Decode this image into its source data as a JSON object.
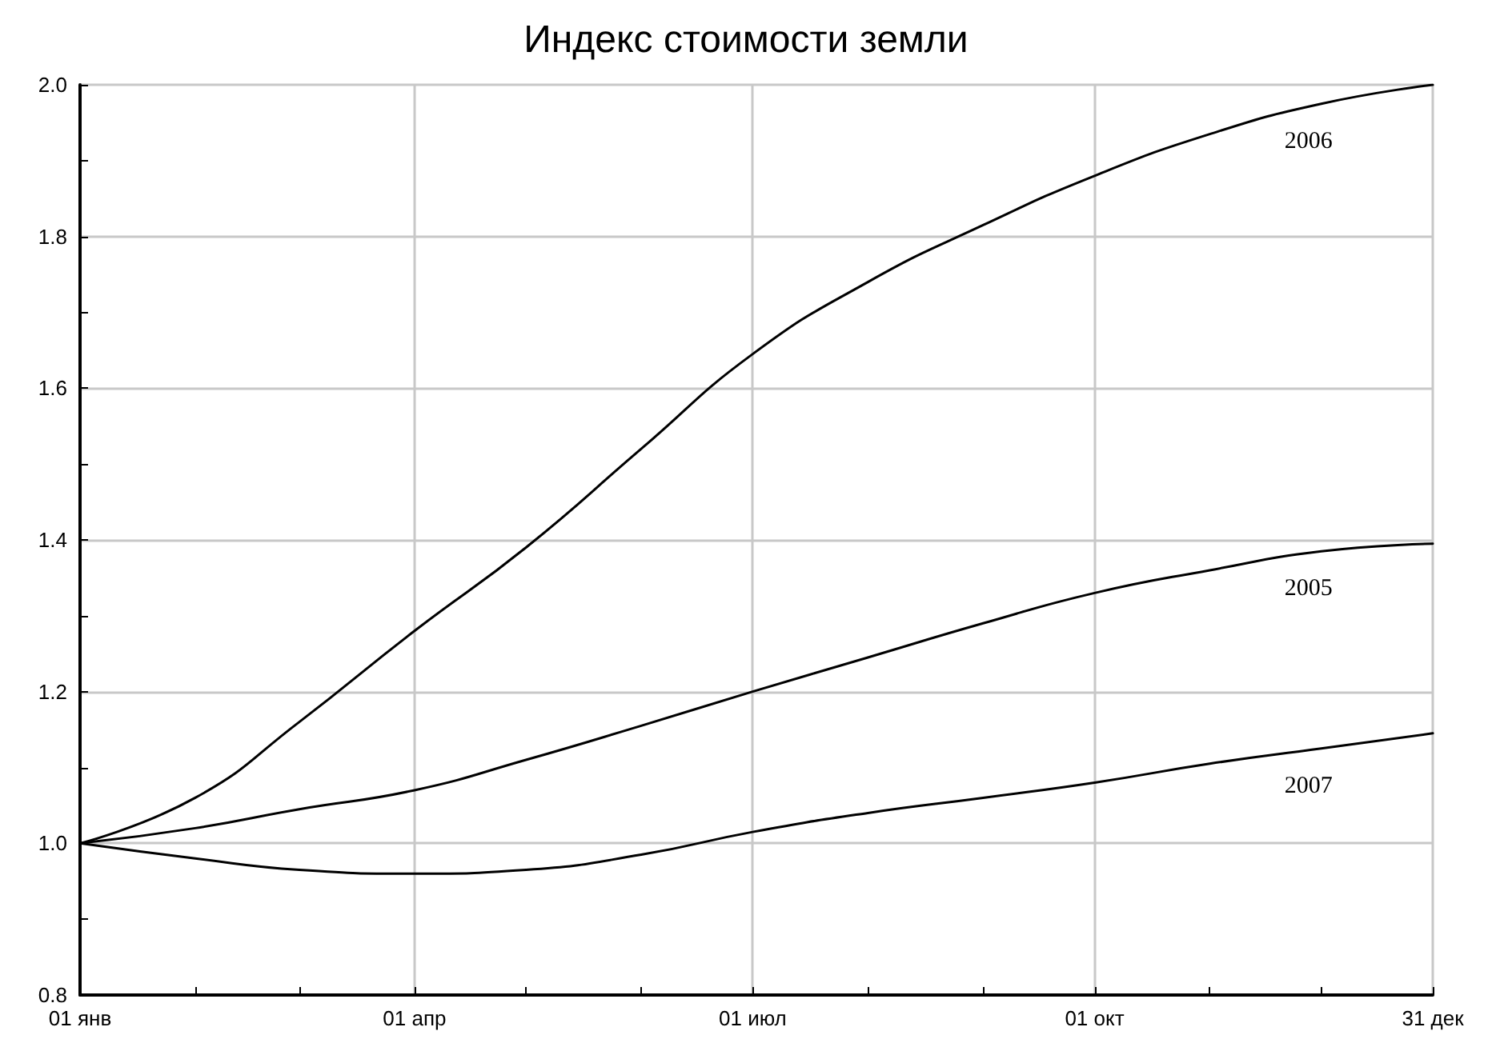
{
  "chart_data": {
    "type": "line",
    "title": "Индекс стоимости земли",
    "x": [
      "--01-01",
      "--02-01",
      "--03-01",
      "--04-01",
      "--05-01",
      "--06-01",
      "--07-01",
      "--08-01",
      "--09-01",
      "--10-01",
      "--11-01",
      "--12-01",
      "--12-31"
    ],
    "series": [
      {
        "name": "2005",
        "color": "#000000",
        "values": [
          1.0,
          1.02,
          1.045,
          1.07,
          1.11,
          1.155,
          1.2,
          1.245,
          1.29,
          1.33,
          1.36,
          1.385,
          1.395
        ]
      },
      {
        "name": "2006",
        "color": "#000000",
        "values": [
          1.0,
          1.06,
          1.16,
          1.28,
          1.39,
          1.52,
          1.645,
          1.74,
          1.815,
          1.88,
          1.935,
          1.975,
          2.0
        ]
      },
      {
        "name": "2007",
        "color": "#000000",
        "values": [
          1.0,
          0.98,
          0.965,
          0.96,
          0.965,
          0.985,
          1.015,
          1.04,
          1.06,
          1.08,
          1.105,
          1.125,
          1.145
        ]
      }
    ],
    "xlim": [
      "--01-01",
      "--12-31"
    ],
    "xticks": [
      {
        "value": "--01-01",
        "label": "01 янв"
      },
      {
        "value": "--02-01",
        "label": null
      },
      {
        "value": "--03-01",
        "label": null
      },
      {
        "value": "--04-01",
        "label": "01 апр"
      },
      {
        "value": "--05-01",
        "label": null
      },
      {
        "value": "--06-01",
        "label": null
      },
      {
        "value": "--07-01",
        "label": "01 июл"
      },
      {
        "value": "--08-01",
        "label": null
      },
      {
        "value": "--09-01",
        "label": null
      },
      {
        "value": "--10-01",
        "label": "01 окт"
      },
      {
        "value": "--11-01",
        "label": null
      },
      {
        "value": "--12-01",
        "label": null
      },
      {
        "value": "--12-31",
        "label": "31 дек"
      }
    ],
    "ylim": [
      0.8,
      2.0
    ],
    "yticks": [
      {
        "value": 0.8,
        "label": "0.8"
      },
      {
        "value": 0.9,
        "label": null
      },
      {
        "value": 1.0,
        "label": "1.0"
      },
      {
        "value": 1.1,
        "label": null
      },
      {
        "value": 1.2,
        "label": "1.2"
      },
      {
        "value": 1.3,
        "label": null
      },
      {
        "value": 1.4,
        "label": "1.4"
      },
      {
        "value": 1.5,
        "label": null
      },
      {
        "value": 1.6,
        "label": "1.6"
      },
      {
        "value": 1.7,
        "label": null
      },
      {
        "value": 1.8,
        "label": "1.8"
      },
      {
        "value": 1.9,
        "label": null
      },
      {
        "value": 2.0,
        "label": "2.0"
      }
    ],
    "grid": true,
    "legend": false,
    "marker": "none",
    "line_style": "solid"
  }
}
